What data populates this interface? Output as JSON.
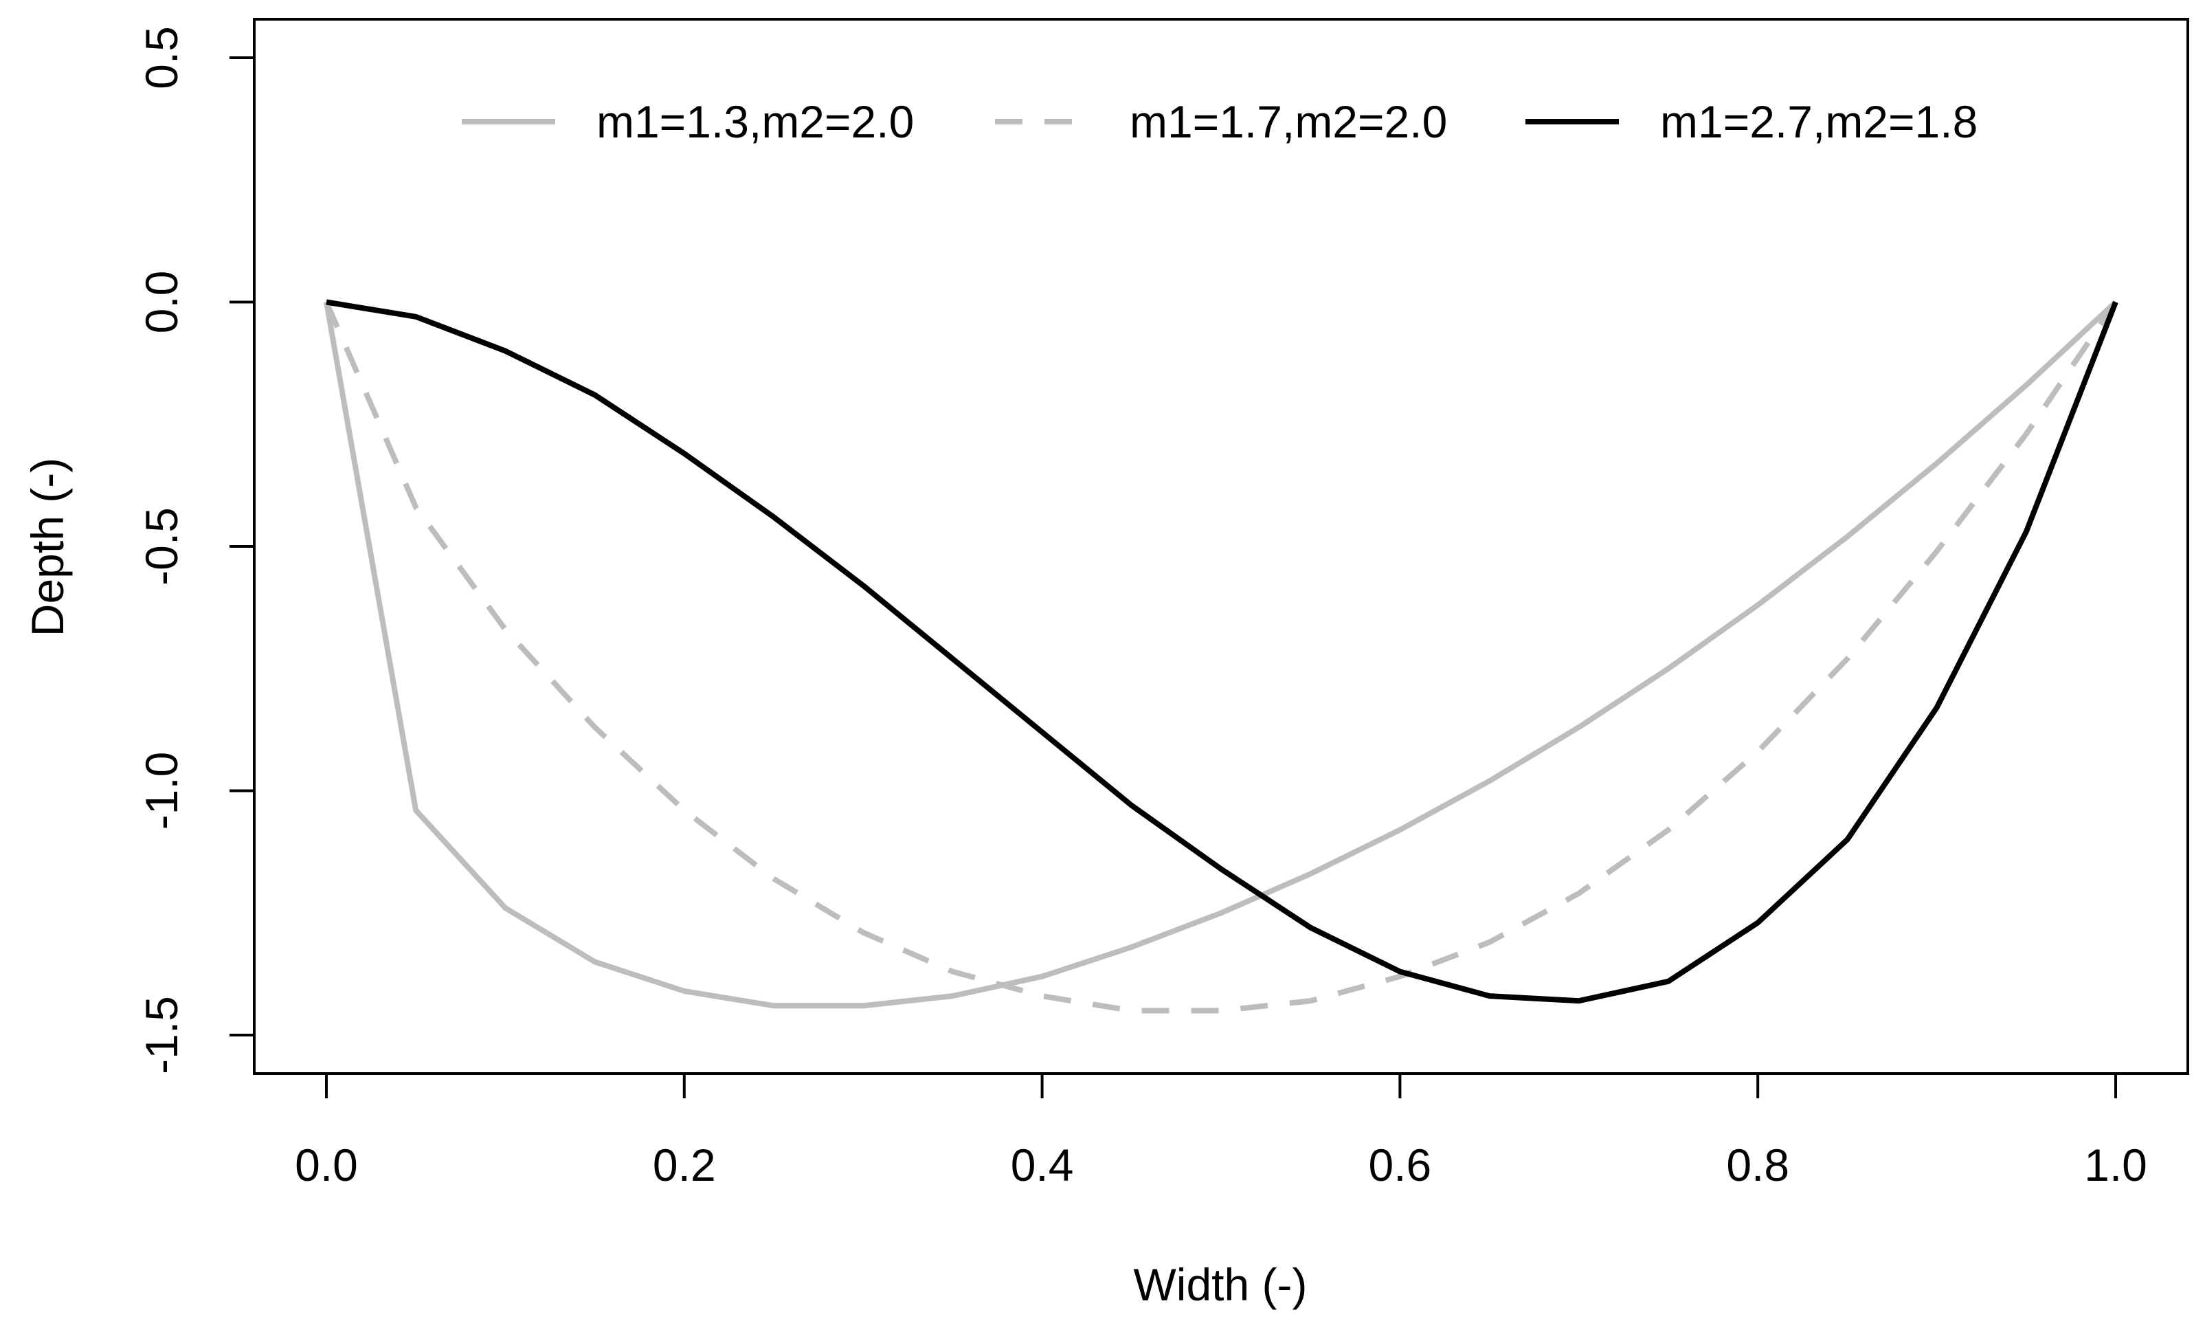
{
  "chart_data": {
    "type": "line",
    "title": "",
    "xlabel": "Width (-)",
    "ylabel": "Depth (-)",
    "xlim": [
      0.0,
      1.0
    ],
    "ylim": [
      -1.5,
      0.5
    ],
    "x_ticks": [
      "0.0",
      "0.2",
      "0.4",
      "0.6",
      "0.8",
      "1.0"
    ],
    "y_ticks": [
      "-1.5",
      "-1.0",
      "-0.5",
      "0.0",
      "0.5"
    ],
    "legend_position": "top",
    "x": [
      0.0,
      0.05,
      0.1,
      0.15,
      0.2,
      0.25,
      0.3,
      0.35,
      0.4,
      0.45,
      0.5,
      0.55,
      0.6,
      0.65,
      0.7,
      0.75,
      0.8,
      0.85,
      0.9,
      0.95,
      1.0
    ],
    "series": [
      {
        "name": "m1=1.3,m2=2.0",
        "color": "#bdbdbd",
        "style": "solid",
        "values": [
          0.0,
          -1.04,
          -1.24,
          -1.35,
          -1.41,
          -1.44,
          -1.44,
          -1.42,
          -1.38,
          -1.32,
          -1.25,
          -1.17,
          -1.08,
          -0.98,
          -0.87,
          -0.75,
          -0.62,
          -0.48,
          -0.33,
          -0.17,
          0.0
        ]
      },
      {
        "name": "m1=1.7,m2=2.0",
        "color": "#bdbdbd",
        "style": "dashed",
        "values": [
          0.0,
          -0.42,
          -0.67,
          -0.87,
          -1.04,
          -1.18,
          -1.29,
          -1.37,
          -1.42,
          -1.45,
          -1.45,
          -1.43,
          -1.38,
          -1.31,
          -1.21,
          -1.08,
          -0.92,
          -0.73,
          -0.51,
          -0.27,
          0.0
        ]
      },
      {
        "name": "m1=2.7,m2=1.8",
        "color": "#000000",
        "style": "solid",
        "values": [
          0.0,
          -0.03,
          -0.1,
          -0.19,
          -0.31,
          -0.44,
          -0.58,
          -0.73,
          -0.88,
          -1.03,
          -1.16,
          -1.28,
          -1.37,
          -1.42,
          -1.43,
          -1.39,
          -1.27,
          -1.1,
          -0.83,
          -0.47,
          0.0
        ]
      }
    ]
  }
}
